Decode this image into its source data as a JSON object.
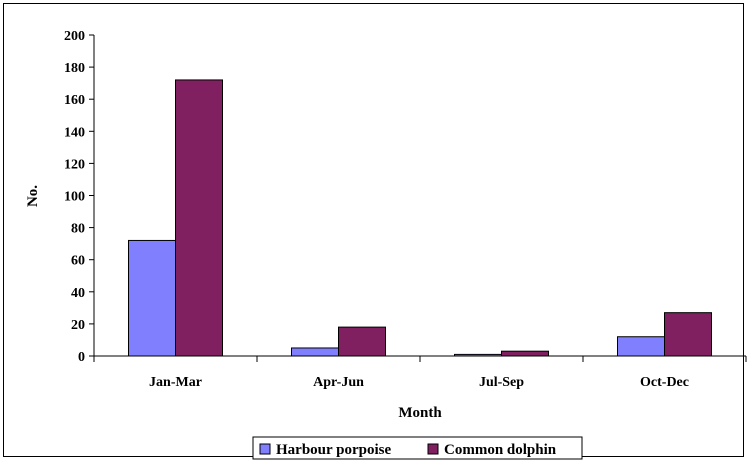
{
  "chart_data": {
    "type": "bar",
    "categories": [
      "Jan-Mar",
      "Apr-Jun",
      "Jul-Sep",
      "Oct-Dec"
    ],
    "series": [
      {
        "name": "Harbour porpoise",
        "values": [
          72,
          5,
          1,
          12
        ],
        "color": "#8080FF"
      },
      {
        "name": "Common dolphin",
        "values": [
          172,
          18,
          3,
          27
        ],
        "color": "#802060"
      }
    ],
    "xlabel": "Month",
    "ylabel": "No.",
    "ylim": [
      0,
      200
    ],
    "yticks": [
      "0",
      "20",
      "40",
      "60",
      "80",
      "100",
      "120",
      "140",
      "160",
      "180",
      "200"
    ],
    "grid": false,
    "legend": "bottom-center"
  }
}
